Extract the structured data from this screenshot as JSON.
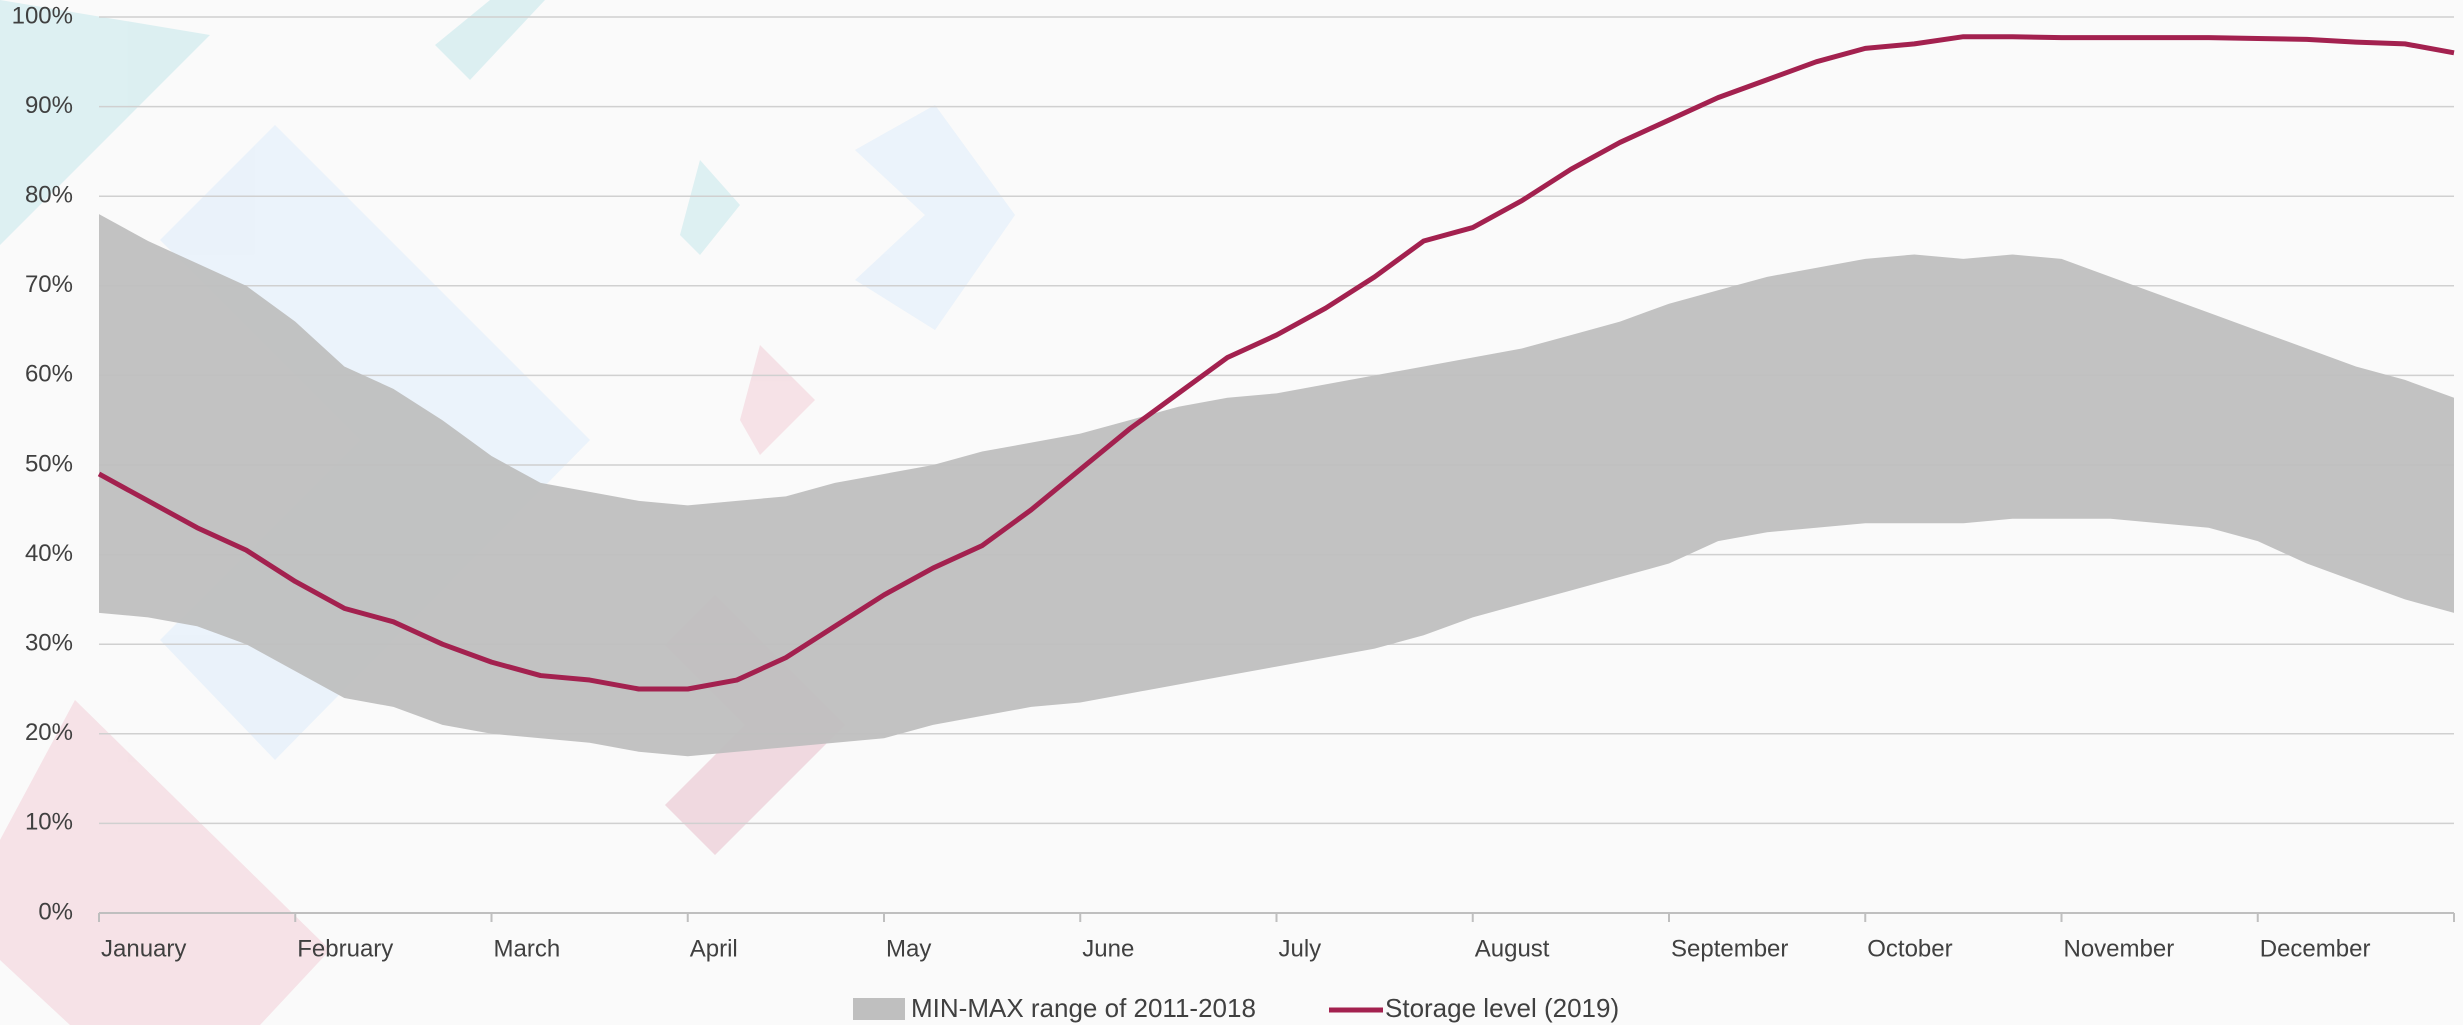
{
  "chart_data": {
    "type": "range-line",
    "categories": [
      "January",
      null,
      null,
      null,
      "February",
      null,
      null,
      null,
      "March",
      null,
      null,
      null,
      "April",
      null,
      null,
      null,
      "May",
      null,
      null,
      null,
      "June",
      null,
      null,
      null,
      "July",
      null,
      null,
      null,
      "August",
      null,
      null,
      null,
      "September",
      null,
      null,
      null,
      "October",
      null,
      null,
      null,
      "November",
      null,
      null,
      null,
      "December",
      null,
      null,
      null,
      null
    ],
    "series": [
      {
        "name": "MIN-MAX range of 2011-2018",
        "color": "#bfbfbf",
        "high": [
          78,
          75,
          72.5,
          70,
          66,
          61,
          58.5,
          55,
          51,
          48,
          47,
          46,
          45.5,
          46,
          46.5,
          48,
          49,
          50,
          51.5,
          52.5,
          53.5,
          55,
          56.5,
          57.5,
          58,
          59,
          60,
          61,
          62,
          63,
          64.5,
          66,
          68,
          69.5,
          71,
          72,
          73,
          73.5,
          73,
          73.5,
          73,
          71,
          69,
          67,
          65,
          63,
          61,
          59.5,
          57.5
        ],
        "low": [
          33.5,
          33,
          32,
          30,
          27,
          24,
          23,
          21,
          20,
          19.5,
          19,
          18,
          17.5,
          18,
          18.5,
          19,
          19.5,
          21,
          22,
          23,
          23.5,
          24.5,
          25.5,
          26.5,
          27.5,
          28.5,
          29.5,
          31,
          33,
          34.5,
          36,
          37.5,
          39,
          41.5,
          42.5,
          43,
          43.5,
          43.5,
          43.5,
          44,
          44,
          44,
          43.5,
          43,
          41.5,
          39,
          37,
          35,
          33.5
        ]
      },
      {
        "name": "Storage level (2019)",
        "color": "#a3214f",
        "values": [
          49,
          46,
          43,
          40.5,
          37,
          34,
          32.5,
          30,
          28,
          26.5,
          26,
          25,
          25,
          26,
          28.5,
          32,
          35.5,
          38.5,
          41,
          45,
          49.5,
          54,
          58,
          62,
          64.5,
          67.5,
          71,
          75,
          76.5,
          79.5,
          83,
          86,
          88.5,
          91,
          93,
          95,
          96.5,
          97,
          97.8,
          97.8,
          97.7,
          97.7,
          97.7,
          97.7,
          97.6,
          97.5,
          97.2,
          97,
          96
        ]
      }
    ],
    "ylim": [
      0,
      100
    ],
    "yticks": [
      {
        "value": 0,
        "label": "0%"
      },
      {
        "value": 10,
        "label": "10%"
      },
      {
        "value": 20,
        "label": "20%"
      },
      {
        "value": 30,
        "label": "30%"
      },
      {
        "value": 40,
        "label": "40%"
      },
      {
        "value": 50,
        "label": "50%"
      },
      {
        "value": 60,
        "label": "60%"
      },
      {
        "value": 70,
        "label": "70%"
      },
      {
        "value": 80,
        "label": "80%"
      },
      {
        "value": 90,
        "label": "90%"
      },
      {
        "value": 100,
        "label": "100%"
      }
    ],
    "grid": true,
    "legend": "bottom"
  }
}
